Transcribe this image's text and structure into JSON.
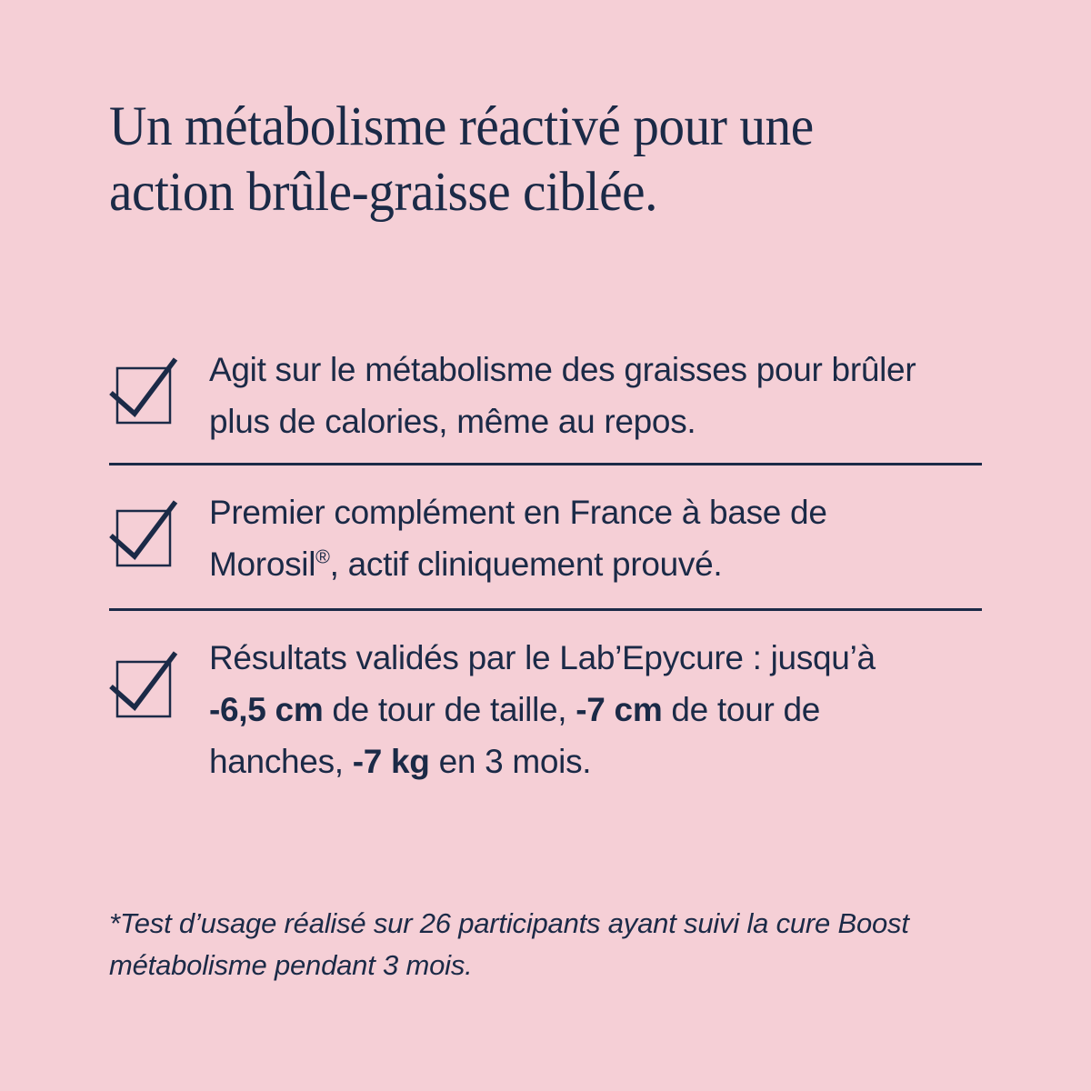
{
  "page": {
    "background_color": "#F5CFD6",
    "text_color": "#1B2A47"
  },
  "title": {
    "lines": [
      "Un métabolisme réactivé pour une",
      "action brûle-graisse ciblée."
    ]
  },
  "benefits": [
    {
      "icon": "checkbox-checked-icon",
      "lines": [
        [
          {
            "t": "Agit sur le métabolisme des graisses pour brûler"
          }
        ],
        [
          {
            "t": "plus de calories, même au repos."
          }
        ]
      ]
    },
    {
      "icon": "checkbox-checked-icon",
      "lines": [
        [
          {
            "t": "Premier complément en France à base de"
          }
        ],
        [
          {
            "t": "Morosil"
          },
          {
            "t": "®",
            "sup": true
          },
          {
            "t": ", actif cliniquement prouvé."
          }
        ]
      ]
    },
    {
      "icon": "checkbox-checked-icon",
      "lines": [
        [
          {
            "t": "Résultats validés par le Lab’Epycure : jusqu’à"
          }
        ],
        [
          {
            "t": "-6,5 cm",
            "b": true
          },
          {
            "t": " de tour de taille, "
          },
          {
            "t": "-7 cm",
            "b": true
          },
          {
            "t": " de tour de"
          }
        ],
        [
          {
            "t": "hanches, "
          },
          {
            "t": "-7 kg",
            "b": true
          },
          {
            "t": " en 3 mois."
          }
        ]
      ]
    }
  ],
  "footnote": {
    "lines": [
      "*Test d’usage réalisé sur 26 participants ayant suivi la cure Boost",
      "métabolisme pendant 3 mois."
    ]
  }
}
